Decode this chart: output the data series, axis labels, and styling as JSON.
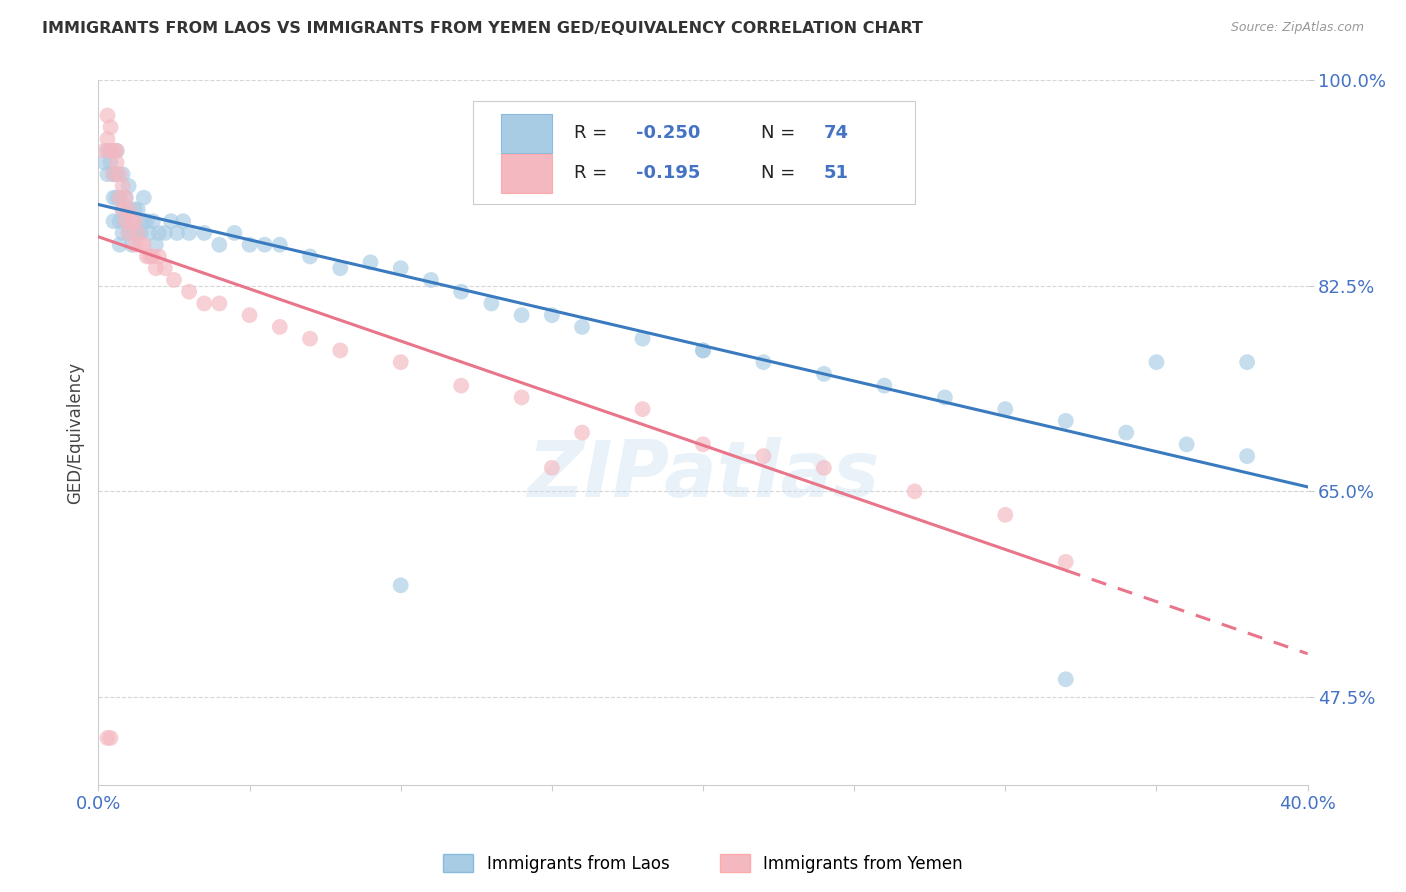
{
  "title": "IMMIGRANTS FROM LAOS VS IMMIGRANTS FROM YEMEN GED/EQUIVALENCY CORRELATION CHART",
  "source": "Source: ZipAtlas.com",
  "ylabel": "GED/Equivalency",
  "legend_label1": "Immigrants from Laos",
  "legend_label2": "Immigrants from Yemen",
  "R1": -0.25,
  "N1": 74,
  "R2": -0.195,
  "N2": 51,
  "xlim": [
    0.0,
    0.4
  ],
  "ylim": [
    0.4,
    1.0
  ],
  "color1": "#a8cce4",
  "color2": "#f4b8c1",
  "line_color1": "#3a7bbf",
  "line_color2": "#e8758a",
  "label_color": "#4472c4",
  "background_color": "#ffffff",
  "grid_color": "#cccccc",
  "laos_x": [
    0.002,
    0.003,
    0.003,
    0.004,
    0.004,
    0.005,
    0.005,
    0.005,
    0.006,
    0.006,
    0.006,
    0.007,
    0.007,
    0.007,
    0.008,
    0.008,
    0.008,
    0.009,
    0.009,
    0.01,
    0.01,
    0.01,
    0.011,
    0.011,
    0.012,
    0.012,
    0.013,
    0.013,
    0.014,
    0.015,
    0.015,
    0.016,
    0.017,
    0.018,
    0.019,
    0.02,
    0.022,
    0.024,
    0.026,
    0.028,
    0.03,
    0.035,
    0.04,
    0.045,
    0.05,
    0.055,
    0.06,
    0.07,
    0.08,
    0.09,
    0.1,
    0.11,
    0.12,
    0.13,
    0.14,
    0.15,
    0.16,
    0.18,
    0.2,
    0.22,
    0.24,
    0.26,
    0.28,
    0.3,
    0.32,
    0.34,
    0.36,
    0.38,
    0.14,
    0.2,
    0.1,
    0.32,
    0.35,
    0.38
  ],
  "laos_y": [
    0.93,
    0.94,
    0.92,
    0.93,
    0.94,
    0.92,
    0.9,
    0.88,
    0.92,
    0.9,
    0.94,
    0.9,
    0.88,
    0.86,
    0.89,
    0.87,
    0.92,
    0.88,
    0.9,
    0.89,
    0.87,
    0.91,
    0.88,
    0.86,
    0.89,
    0.87,
    0.87,
    0.89,
    0.87,
    0.88,
    0.9,
    0.88,
    0.87,
    0.88,
    0.86,
    0.87,
    0.87,
    0.88,
    0.87,
    0.88,
    0.87,
    0.87,
    0.86,
    0.87,
    0.86,
    0.86,
    0.86,
    0.85,
    0.84,
    0.845,
    0.84,
    0.83,
    0.82,
    0.81,
    0.8,
    0.8,
    0.79,
    0.78,
    0.77,
    0.76,
    0.75,
    0.74,
    0.73,
    0.72,
    0.71,
    0.7,
    0.69,
    0.68,
    0.96,
    0.77,
    0.57,
    0.49,
    0.76,
    0.76
  ],
  "yemen_x": [
    0.002,
    0.003,
    0.003,
    0.004,
    0.004,
    0.005,
    0.005,
    0.006,
    0.006,
    0.007,
    0.007,
    0.008,
    0.008,
    0.009,
    0.009,
    0.01,
    0.01,
    0.011,
    0.012,
    0.012,
    0.013,
    0.014,
    0.015,
    0.016,
    0.017,
    0.018,
    0.019,
    0.02,
    0.022,
    0.025,
    0.03,
    0.035,
    0.04,
    0.05,
    0.06,
    0.07,
    0.08,
    0.1,
    0.12,
    0.14,
    0.16,
    0.18,
    0.2,
    0.22,
    0.24,
    0.27,
    0.3,
    0.003,
    0.004,
    0.15,
    0.32
  ],
  "yemen_y": [
    0.94,
    0.97,
    0.95,
    0.96,
    0.94,
    0.94,
    0.92,
    0.93,
    0.94,
    0.92,
    0.9,
    0.91,
    0.89,
    0.9,
    0.88,
    0.89,
    0.87,
    0.88,
    0.88,
    0.86,
    0.87,
    0.86,
    0.86,
    0.85,
    0.85,
    0.85,
    0.84,
    0.85,
    0.84,
    0.83,
    0.82,
    0.81,
    0.81,
    0.8,
    0.79,
    0.78,
    0.77,
    0.76,
    0.74,
    0.73,
    0.7,
    0.72,
    0.69,
    0.68,
    0.67,
    0.65,
    0.63,
    0.44,
    0.44,
    0.67,
    0.59
  ]
}
